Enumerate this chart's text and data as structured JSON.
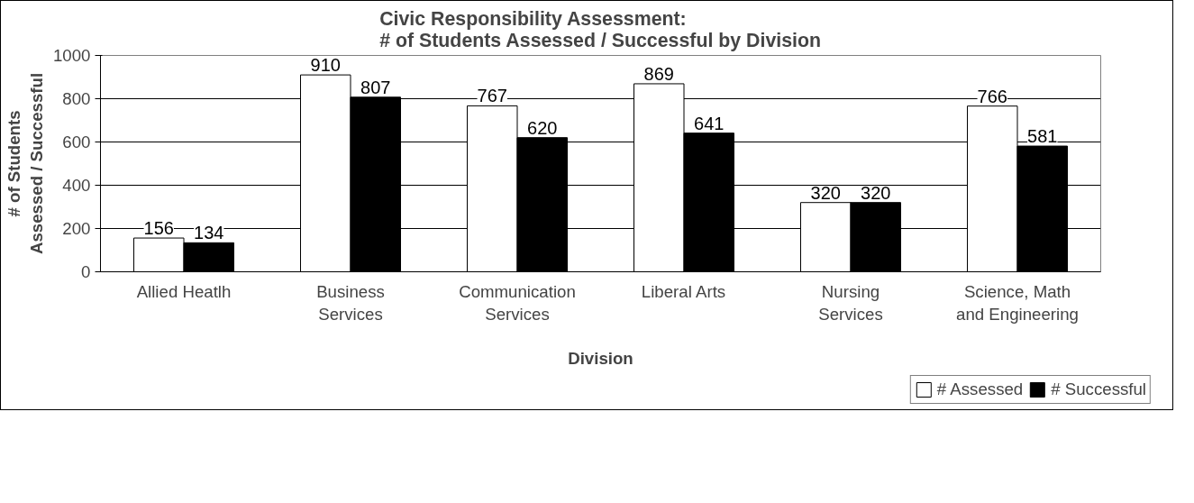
{
  "chart_data": {
    "type": "bar",
    "title": "Civic Responsibility Assessment:\n# of Students Assessed / Successful by Division",
    "xlabel": "Division",
    "ylabel": "# of Students\nAssessed / Successful",
    "categories": [
      "Allied Heatlh",
      "Business\nServices",
      "Communication\nServices",
      "Liberal Arts",
      "Nursing\nServices",
      "Science, Math\nand Engineering"
    ],
    "series": [
      {
        "name": "# Assessed",
        "color": "#ffffff",
        "values": [
          156,
          910,
          767,
          869,
          320,
          766
        ]
      },
      {
        "name": "# Successful",
        "color": "#000000",
        "values": [
          134,
          807,
          620,
          641,
          320,
          581
        ]
      }
    ],
    "ylim": [
      0,
      1000
    ],
    "yticks": [
      0,
      200,
      400,
      600,
      800,
      1000
    ],
    "grid": "y",
    "legend": "bottom right",
    "data_labels": true
  }
}
